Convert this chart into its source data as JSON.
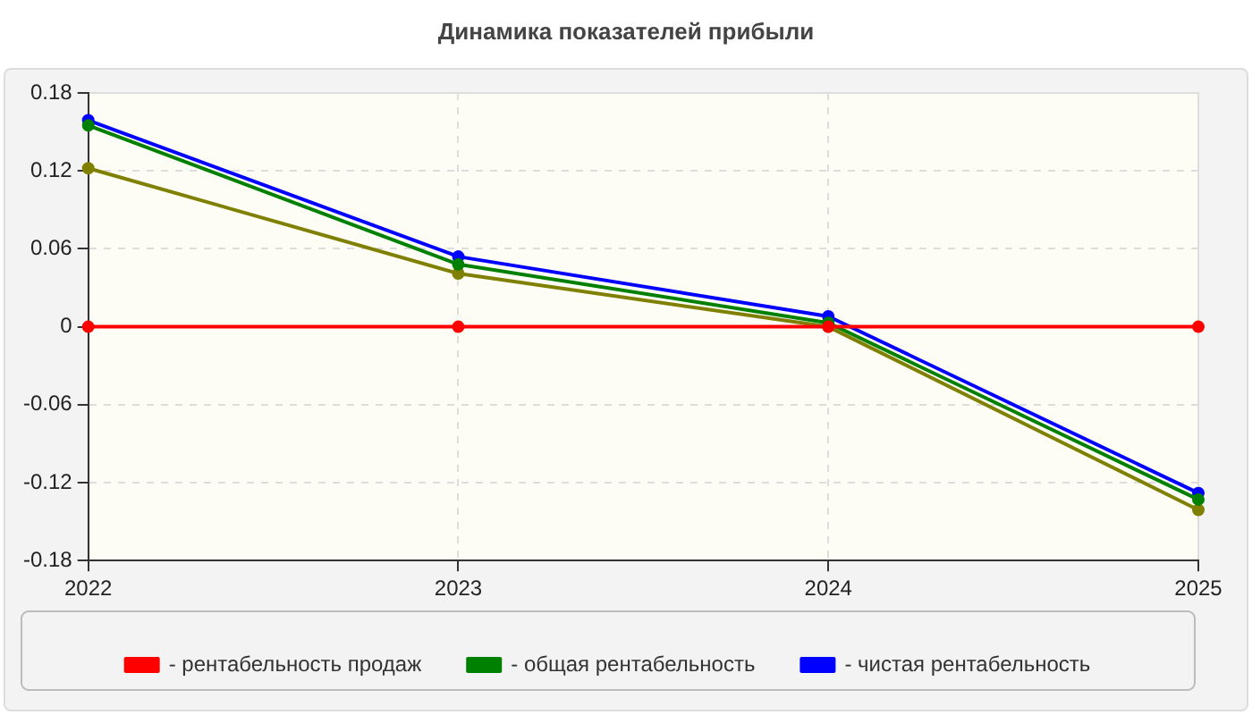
{
  "chart_data": {
    "type": "line",
    "title": "Динамика показателей прибыли",
    "categories": [
      "2022",
      "2023",
      "2024",
      "2025"
    ],
    "series": [
      {
        "name": "- рентабельность продаж",
        "color": "#ff0000",
        "values": [
          0,
          0,
          0,
          0
        ]
      },
      {
        "name": "- общая рентабельность",
        "color": "#008000",
        "values": [
          0.155,
          0.048,
          0.003,
          -0.133
        ]
      },
      {
        "name": "- чистая рентабельность",
        "color": "#0000ff",
        "values": [
          0.159,
          0.054,
          0.008,
          -0.128
        ]
      },
      {
        "color": "#808000",
        "values": [
          0.122,
          0.041,
          0.0,
          -0.141
        ]
      }
    ],
    "ylim": [
      -0.18,
      0.18
    ],
    "yticks": [
      -0.18,
      -0.12,
      -0.06,
      0,
      0.06,
      0.12,
      0.18
    ],
    "grid": true,
    "legend": "bottom",
    "marker": "circle",
    "line_style": "solid"
  }
}
